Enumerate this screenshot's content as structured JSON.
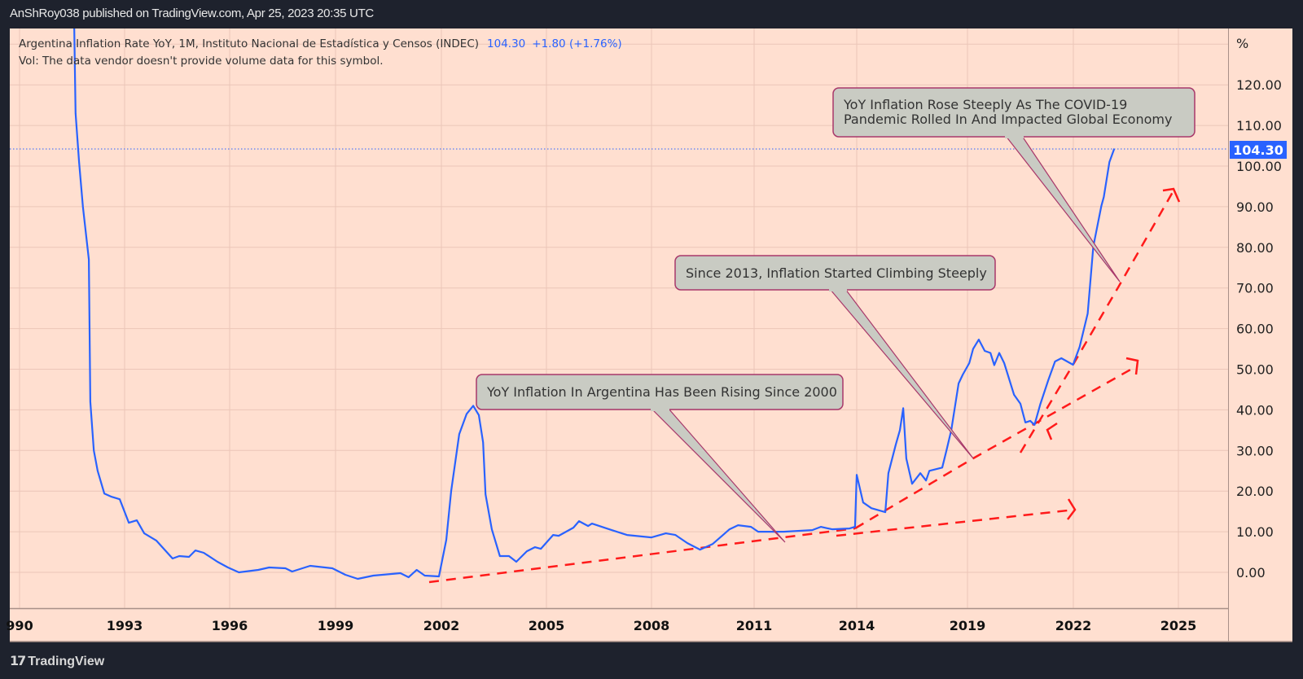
{
  "header": {
    "published": "AnShRoy038 published on TradingView.com, Apr 25, 2023 20:35 UTC"
  },
  "legend": {
    "symbol": "Argentina Inflation Rate YoY, 1M, Instituto Nacional de Estadística y Censos (INDEC)",
    "last": "104.30",
    "change": "+1.80 (+1.76%)",
    "volume_note": "Vol: The data vendor doesn't provide volume data for this symbol."
  },
  "footer": {
    "brand": "TradingView",
    "logo_text": "17"
  },
  "colors": {
    "background": "#ffdfd0",
    "line": "#2962ff",
    "trend": "#ff1a1a",
    "callout_fill": "#c9cbc3",
    "callout_border": "#a8386a",
    "chrome": "#1e222d"
  },
  "chart_data": {
    "type": "line",
    "unit_label": "%",
    "last_value_label": "104.30",
    "y_ticks": [
      "0.00",
      "10.00",
      "20.00",
      "30.00",
      "40.00",
      "50.00",
      "60.00",
      "70.00",
      "80.00",
      "90.00",
      "100.00",
      "110.00",
      "120.00"
    ],
    "x_ticks": [
      "990",
      "1993",
      "1996",
      "1999",
      "2002",
      "2005",
      "2008",
      "2011",
      "2014",
      "2019",
      "2022",
      "2025"
    ],
    "ylim": [
      -8.8,
      133.9
    ],
    "grid": true,
    "series": [
      {
        "points": [
          [
            1991.56,
            135
          ],
          [
            1991.6,
            113
          ],
          [
            1991.7,
            101
          ],
          [
            1991.81,
            90
          ],
          [
            1991.98,
            77
          ],
          [
            1992.02,
            42
          ],
          [
            1992.12,
            30
          ],
          [
            1992.23,
            25
          ],
          [
            1992.42,
            19.4
          ],
          [
            1992.63,
            18.6
          ],
          [
            1992.86,
            18
          ],
          [
            1993.12,
            12.2
          ],
          [
            1993.35,
            12.8
          ],
          [
            1993.56,
            9.6
          ],
          [
            1993.91,
            7.8
          ],
          [
            1994.37,
            3.4
          ],
          [
            1994.56,
            4
          ],
          [
            1994.84,
            3.8
          ],
          [
            1995.02,
            5.4
          ],
          [
            1995.26,
            4.8
          ],
          [
            1995.65,
            2.6
          ],
          [
            1995.95,
            1.2
          ],
          [
            1996.26,
            0
          ],
          [
            1996.81,
            0.6
          ],
          [
            1997.12,
            1.2
          ],
          [
            1997.58,
            1.0
          ],
          [
            1997.77,
            0.2
          ],
          [
            1998.28,
            1.6
          ],
          [
            1998.91,
            1.0
          ],
          [
            1999.28,
            -0.6
          ],
          [
            1999.63,
            -1.6
          ],
          [
            2000.07,
            -0.8
          ],
          [
            2000.84,
            -0.2
          ],
          [
            2001.07,
            -1.2
          ],
          [
            2001.3,
            0.6
          ],
          [
            2001.53,
            -0.8
          ],
          [
            2001.93,
            -1.0
          ],
          [
            2002.14,
            8
          ],
          [
            2002.28,
            20
          ],
          [
            2002.51,
            34
          ],
          [
            2002.72,
            39
          ],
          [
            2002.91,
            41
          ],
          [
            2003.07,
            38.7
          ],
          [
            2003.19,
            32
          ],
          [
            2003.26,
            19.2
          ],
          [
            2003.44,
            10.6
          ],
          [
            2003.67,
            4
          ],
          [
            2003.93,
            4
          ],
          [
            2004.14,
            2.6
          ],
          [
            2004.44,
            5.2
          ],
          [
            2004.67,
            6.2
          ],
          [
            2004.84,
            5.8
          ],
          [
            2005.19,
            9.2
          ],
          [
            2005.35,
            9
          ],
          [
            2005.77,
            11
          ],
          [
            2005.93,
            12.6
          ],
          [
            2006.19,
            11.4
          ],
          [
            2006.3,
            12
          ],
          [
            2006.79,
            10.6
          ],
          [
            2007.3,
            9.2
          ],
          [
            2008.0,
            8.6
          ],
          [
            2008.42,
            9.6
          ],
          [
            2008.7,
            9.2
          ],
          [
            2009.05,
            7.2
          ],
          [
            2009.42,
            5.6
          ],
          [
            2009.79,
            7
          ],
          [
            2010.28,
            10.6
          ],
          [
            2010.53,
            11.6
          ],
          [
            2010.91,
            11.2
          ],
          [
            2011.12,
            10
          ],
          [
            2011.86,
            10
          ],
          [
            2012.7,
            10.4
          ],
          [
            2012.95,
            11.2
          ],
          [
            2013.28,
            10.6
          ],
          [
            2013.79,
            10.8
          ],
          [
            2013.95,
            11.2
          ],
          [
            2014.0,
            24
          ],
          [
            2014.29,
            17.2
          ],
          [
            2014.66,
            15.8
          ],
          [
            2015.29,
            14.8
          ],
          [
            2015.43,
            24.4
          ],
          [
            2015.76,
            31.4
          ],
          [
            2015.95,
            35
          ],
          [
            2016.1,
            40.4
          ],
          [
            2016.24,
            28
          ],
          [
            2016.5,
            21.8
          ],
          [
            2016.87,
            24.4
          ],
          [
            2017.13,
            22.6
          ],
          [
            2017.28,
            25
          ],
          [
            2017.86,
            25.8
          ],
          [
            2018.05,
            30
          ],
          [
            2018.27,
            35
          ],
          [
            2018.6,
            46.5
          ],
          [
            2018.79,
            48.7
          ],
          [
            2019.05,
            51.5
          ],
          [
            2019.16,
            55
          ],
          [
            2019.32,
            57.3
          ],
          [
            2019.49,
            54.5
          ],
          [
            2019.65,
            54
          ],
          [
            2019.76,
            51
          ],
          [
            2019.9,
            54
          ],
          [
            2020.04,
            51.5
          ],
          [
            2020.32,
            43.7
          ],
          [
            2020.5,
            41.5
          ],
          [
            2020.64,
            36.9
          ],
          [
            2020.78,
            37.3
          ],
          [
            2020.9,
            36.3
          ],
          [
            2021.06,
            41.3
          ],
          [
            2021.29,
            47.3
          ],
          [
            2021.48,
            51.9
          ],
          [
            2021.66,
            52.7
          ],
          [
            2021.99,
            51.1
          ],
          [
            2022.18,
            55.5
          ],
          [
            2022.41,
            63.7
          ],
          [
            2022.57,
            80.2
          ],
          [
            2022.8,
            90.2
          ],
          [
            2022.87,
            92.4
          ],
          [
            2023.03,
            101
          ],
          [
            2023.17,
            104.3
          ]
        ]
      }
    ],
    "annotations": [
      {
        "lines": [
          "YoY Inflation In Argentina Has Been Rising Since 2000"
        ]
      },
      {
        "lines": [
          "Since 2013, Inflation Started Climbing Steeply"
        ]
      },
      {
        "lines": [
          "YoY Inflation Rose Steeply As The COVID-19",
          "Pandemic Rolled In And Impacted Global Economy"
        ]
      }
    ]
  }
}
